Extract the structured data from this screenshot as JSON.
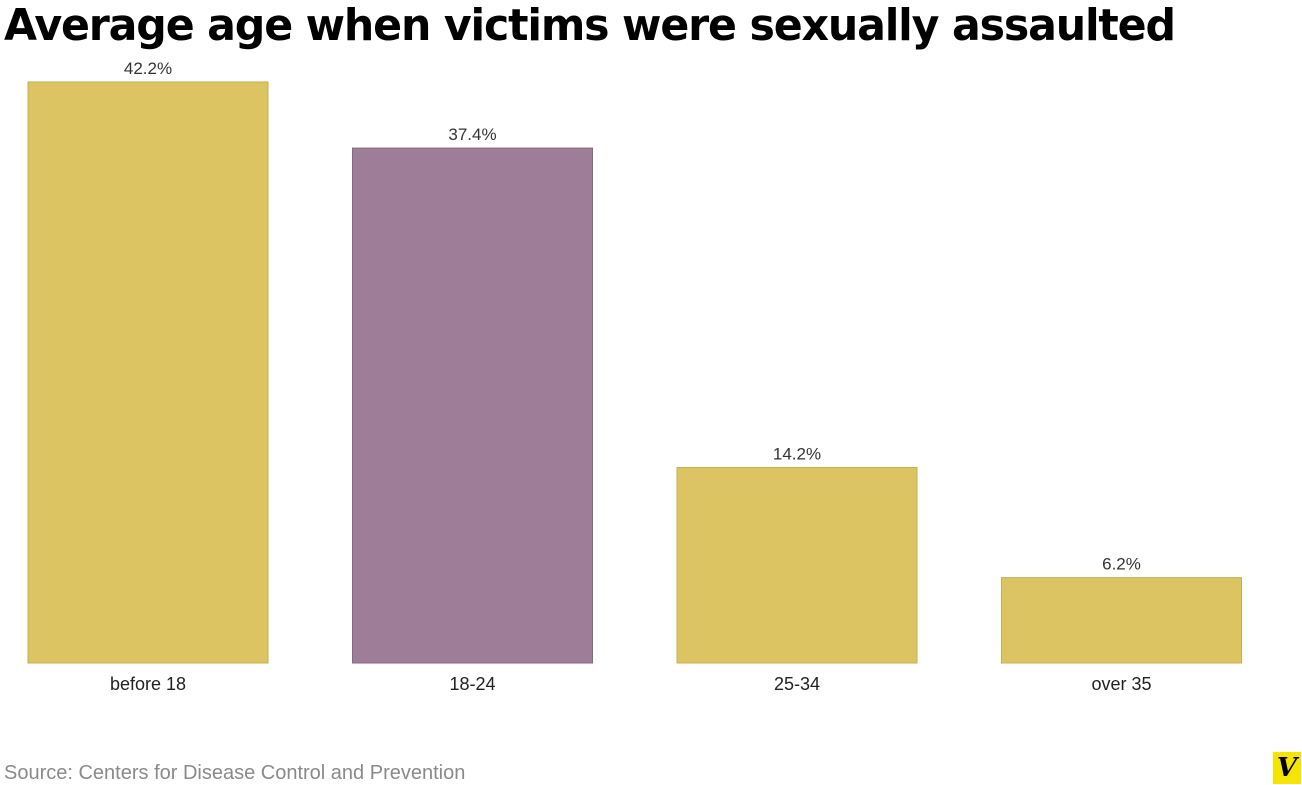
{
  "chart_data": {
    "type": "bar",
    "title": "Average age when victims were sexually assaulted",
    "categories": [
      "before 18",
      "18-24",
      "25-34",
      "over 35"
    ],
    "values": [
      42.2,
      37.4,
      14.2,
      6.2
    ],
    "data_labels": [
      "42.2%",
      "37.4%",
      "14.2%",
      "6.2%"
    ],
    "highlight_index": 1,
    "xlabel": "",
    "ylabel": "",
    "ylim": [
      0,
      42.2
    ],
    "grid": false,
    "legend": "none"
  },
  "colors": {
    "bar": "#dcc463",
    "bar_stroke": "#c8ae4c",
    "highlight": "#9e7d98",
    "highlight_stroke": "#876680"
  },
  "source": "Source: Centers for Disease Control and Prevention",
  "logo": {
    "icon": "vox-logo-icon",
    "text": "V"
  }
}
